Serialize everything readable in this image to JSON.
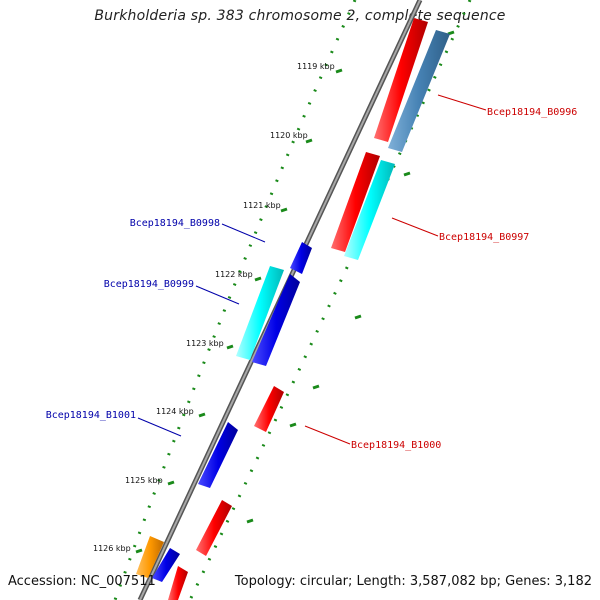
{
  "title": "Burkholderia sp. 383 chromosome 2, complete sequence",
  "footer": {
    "accession": "Accession: NC_007511",
    "summary": "Topology: circular; Length: 3,587,082 bp; Genes: 3,182"
  },
  "colors": {
    "backbone": "#808080",
    "tick_dots": "#1a8a1a",
    "tick_major": "#1a8a1a",
    "label_red": "#cc0000",
    "label_blue": "#0000aa",
    "gene_red": "#ff0000",
    "gene_blue": "#0000e6",
    "gene_cyan": "#00e8e8",
    "gene_steelblue": "#4682b4",
    "gene_orange": "#ff9900"
  },
  "scale_ticks": [
    {
      "label": "1119 kbp",
      "kbp": 1119
    },
    {
      "label": "1120 kbp",
      "kbp": 1120
    },
    {
      "label": "1121 kbp",
      "kbp": 1121
    },
    {
      "label": "1122 kbp",
      "kbp": 1122
    },
    {
      "label": "1123 kbp",
      "kbp": 1123
    },
    {
      "label": "1124 kbp",
      "kbp": 1124
    },
    {
      "label": "1125 kbp",
      "kbp": 1125
    },
    {
      "label": "1126 kbp",
      "kbp": 1126
    }
  ],
  "gene_labels": [
    {
      "name": "Bcep18194_B0996",
      "strand": "outer"
    },
    {
      "name": "Bcep18194_B0997",
      "strand": "outer"
    },
    {
      "name": "Bcep18194_B0998",
      "strand": "inner"
    },
    {
      "name": "Bcep18194_B0999",
      "strand": "inner"
    },
    {
      "name": "Bcep18194_B1000",
      "strand": "outer"
    },
    {
      "name": "Bcep18194_B1001",
      "strand": "inner"
    }
  ]
}
